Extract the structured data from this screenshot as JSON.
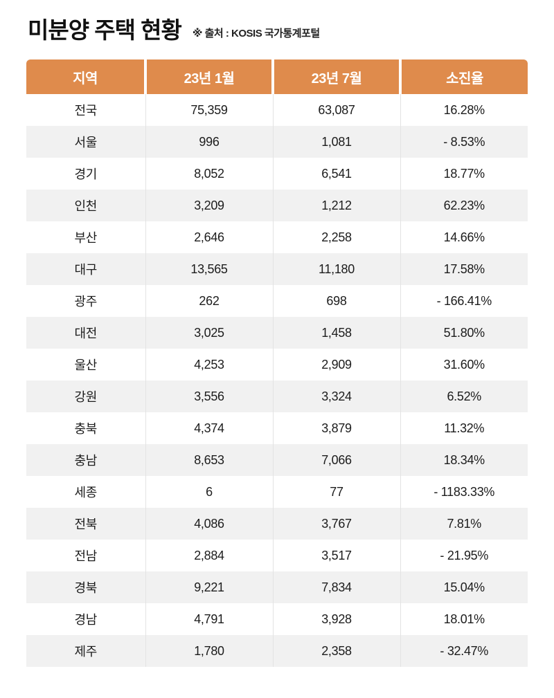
{
  "header": {
    "title": "미분양 주택 현황",
    "source": "※ 출처 : KOSIS 국가통계포털"
  },
  "colors": {
    "header_bg": "#DF8B4C",
    "header_text": "#FFFFFF",
    "row_alt_bg": "#F1F1F1",
    "body_text": "#1C1C1C"
  },
  "chart_data": {
    "type": "table",
    "title": "미분양 주택 현황",
    "source": "※ 출처 : KOSIS 국가통계포털",
    "columns": [
      "지역",
      "23년 1월",
      "23년 7월",
      "소진율"
    ],
    "rows": [
      [
        "전국",
        "75,359",
        "63,087",
        "16.28%"
      ],
      [
        "서울",
        "996",
        "1,081",
        "- 8.53%"
      ],
      [
        "경기",
        "8,052",
        "6,541",
        "18.77%"
      ],
      [
        "인천",
        "3,209",
        "1,212",
        "62.23%"
      ],
      [
        "부산",
        "2,646",
        "2,258",
        "14.66%"
      ],
      [
        "대구",
        "13,565",
        "11,180",
        "17.58%"
      ],
      [
        "광주",
        "262",
        "698",
        "- 166.41%"
      ],
      [
        "대전",
        "3,025",
        "1,458",
        "51.80%"
      ],
      [
        "울산",
        "4,253",
        "2,909",
        "31.60%"
      ],
      [
        "강원",
        "3,556",
        "3,324",
        "6.52%"
      ],
      [
        "충북",
        "4,374",
        "3,879",
        "11.32%"
      ],
      [
        "충남",
        "8,653",
        "7,066",
        "18.34%"
      ],
      [
        "세종",
        "6",
        "77",
        "- 1183.33%"
      ],
      [
        "전북",
        "4,086",
        "3,767",
        "7.81%"
      ],
      [
        "전남",
        "2,884",
        "3,517",
        "- 21.95%"
      ],
      [
        "경북",
        "9,221",
        "7,834",
        "15.04%"
      ],
      [
        "경남",
        "4,791",
        "3,928",
        "18.01%"
      ],
      [
        "제주",
        "1,780",
        "2,358",
        "- 32.47%"
      ]
    ]
  }
}
